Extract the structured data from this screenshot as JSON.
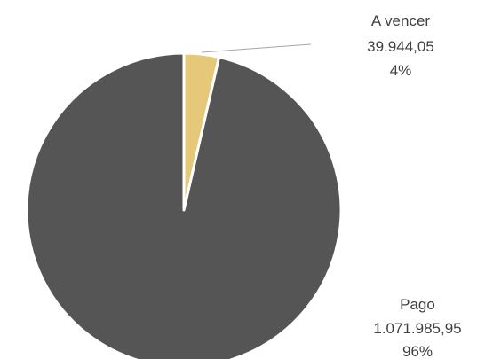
{
  "chart_data": {
    "type": "pie",
    "start_angle_deg": 0,
    "direction": "clockwise",
    "slices": [
      {
        "label": "A vencer",
        "value": 39944.05,
        "value_text": "39.944,05",
        "percent_text": "4%",
        "color": "#e6c879"
      },
      {
        "label": "Pago",
        "value": 1071985.95,
        "value_text": "1.071.985,95",
        "percent_text": "96%",
        "color": "#555555"
      }
    ],
    "title": "",
    "legend": "none"
  }
}
